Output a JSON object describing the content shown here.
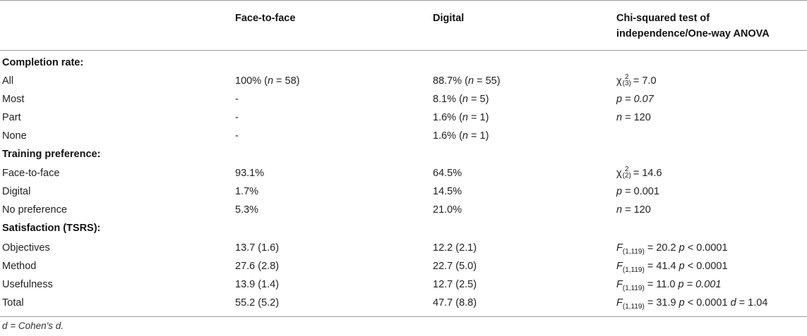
{
  "header": {
    "col1": "Face-to-face",
    "col2": "Digital",
    "col3_line1": "Chi-squared test of",
    "col3_line2": "independence/One-way ANOVA"
  },
  "sections": [
    {
      "title": "Completion rate:",
      "rows": [
        {
          "label": "All",
          "f2f": "100% (n = 58)",
          "digital": "88.7% (n = 55)",
          "stat": "χ²(3) = 7.0"
        },
        {
          "label": "Most",
          "f2f": "-",
          "digital": "8.1% (n = 5)",
          "stat": "p = 0.07"
        },
        {
          "label": "Part",
          "f2f": "-",
          "digital": "1.6% (n = 1)",
          "stat": "n = 120"
        },
        {
          "label": "None",
          "f2f": "-",
          "digital": "1.6% (n = 1)",
          "stat": ""
        }
      ]
    },
    {
      "title": "Training preference:",
      "rows": [
        {
          "label": "Face-to-face",
          "f2f": "93.1%",
          "digital": "64.5%",
          "stat": "χ²(2) = 14.6"
        },
        {
          "label": "Digital",
          "f2f": "1.7%",
          "digital": "14.5%",
          "stat": "p = 0.001"
        },
        {
          "label": "No preference",
          "f2f": "5.3%",
          "digital": "21.0%",
          "stat": "n = 120"
        }
      ]
    },
    {
      "title": "Satisfaction (TSRS):",
      "rows": [
        {
          "label": "Objectives",
          "f2f": "13.7 (1.6)",
          "digital": "12.2 (2.1)",
          "stat": "F(1,119) = 20.2 p < 0.0001"
        },
        {
          "label": "Method",
          "f2f": "27.6 (2.8)",
          "digital": "22.7 (5.0)",
          "stat": "F(1,119) = 41.4 p < 0.0001"
        },
        {
          "label": "Usefulness",
          "f2f": "13.9 (1.4)",
          "digital": "12.7 (2.5)",
          "stat": "F(1,119) = 11.0 p = 0.001"
        },
        {
          "label": "Total",
          "f2f": "55.2 (5.2)",
          "digital": "47.7 (8.8)",
          "stat": "F(1,119) = 31.9 p < 0.0001 d = 1.04"
        }
      ]
    }
  ],
  "footnote": "d = Cohen's d."
}
